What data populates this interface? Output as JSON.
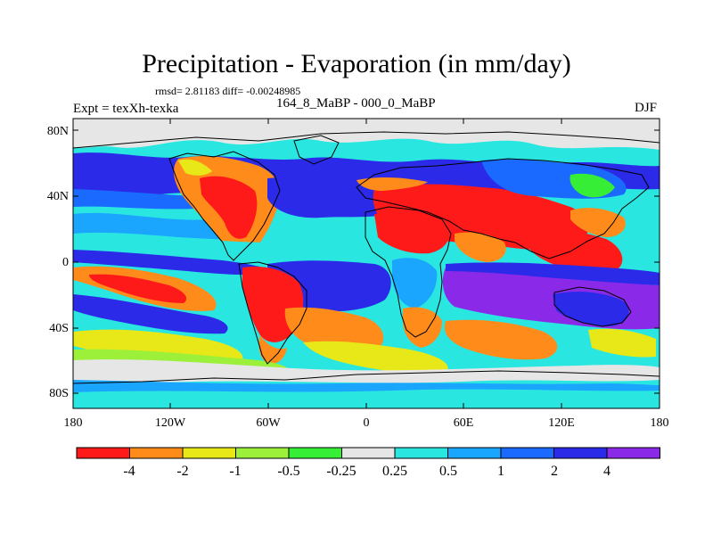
{
  "title": "Precipitation - Evaporation (in mm/day)",
  "stats": "rmsd= 2.81183 diff= -0.00248985",
  "experiment": "Expt = texXh-texka",
  "subtitle": "164_8_MaBP - 000_0_MaBP",
  "season": "DJF",
  "y_ticks": [
    "80N",
    "40N",
    "0",
    "40S",
    "80S"
  ],
  "x_ticks": [
    "180",
    "120W",
    "60W",
    "0",
    "60E",
    "120E",
    "180"
  ],
  "colorbar": {
    "colors": [
      "#ff1a1a",
      "#ff8c1a",
      "#e8e818",
      "#9cf03a",
      "#35ee35",
      "#e6e6e6",
      "#29e6e0",
      "#1aa6ff",
      "#1a6aff",
      "#2a2ae8",
      "#8a2ae8"
    ],
    "labels": [
      "-4",
      "-2",
      "-1",
      "-0.5",
      "-0.25",
      "0.25",
      "0.5",
      "1",
      "2",
      "4"
    ]
  },
  "map_colors": {
    "red": "#ff1a1a",
    "orange": "#ff8c1a",
    "yellow": "#e8e818",
    "lightgreen": "#9cf03a",
    "green": "#35ee35",
    "gray": "#e6e6e6",
    "cyan": "#29e6e0",
    "lightblue": "#1aa6ff",
    "blue": "#1a6aff",
    "darkblue": "#2a2ae8",
    "purple": "#8a2ae8"
  }
}
